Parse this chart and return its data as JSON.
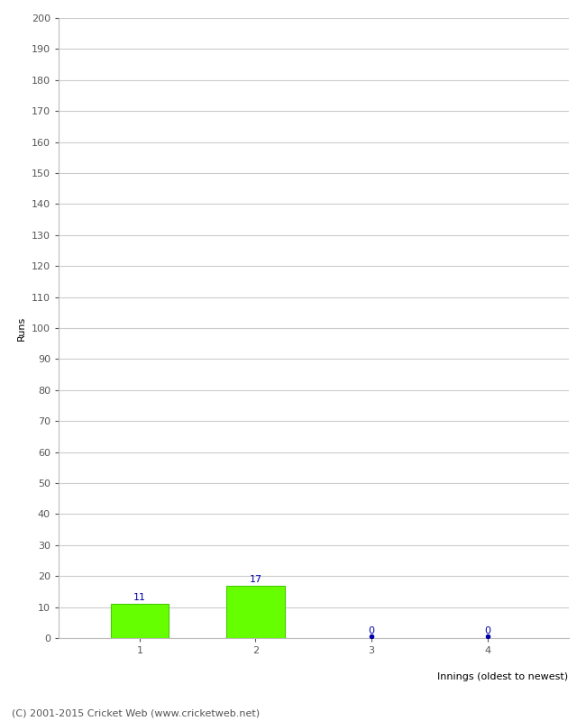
{
  "categories": [
    1,
    2,
    3,
    4
  ],
  "values": [
    11,
    17,
    0,
    0
  ],
  "bar_color": "#66ff00",
  "bar_edge_color": "#44cc00",
  "zero_marker_color": "#0000aa",
  "xlabel": "Innings (oldest to newest)",
  "ylabel": "Runs",
  "ylim": [
    0,
    200
  ],
  "ytick_step": 10,
  "label_color": "#0000aa",
  "label_fontsize": 8,
  "axis_fontsize": 8,
  "tick_fontsize": 8,
  "footer_text": "(C) 2001-2015 Cricket Web (www.cricketweb.net)",
  "footer_fontsize": 8,
  "background_color": "#ffffff",
  "grid_color": "#cccccc"
}
